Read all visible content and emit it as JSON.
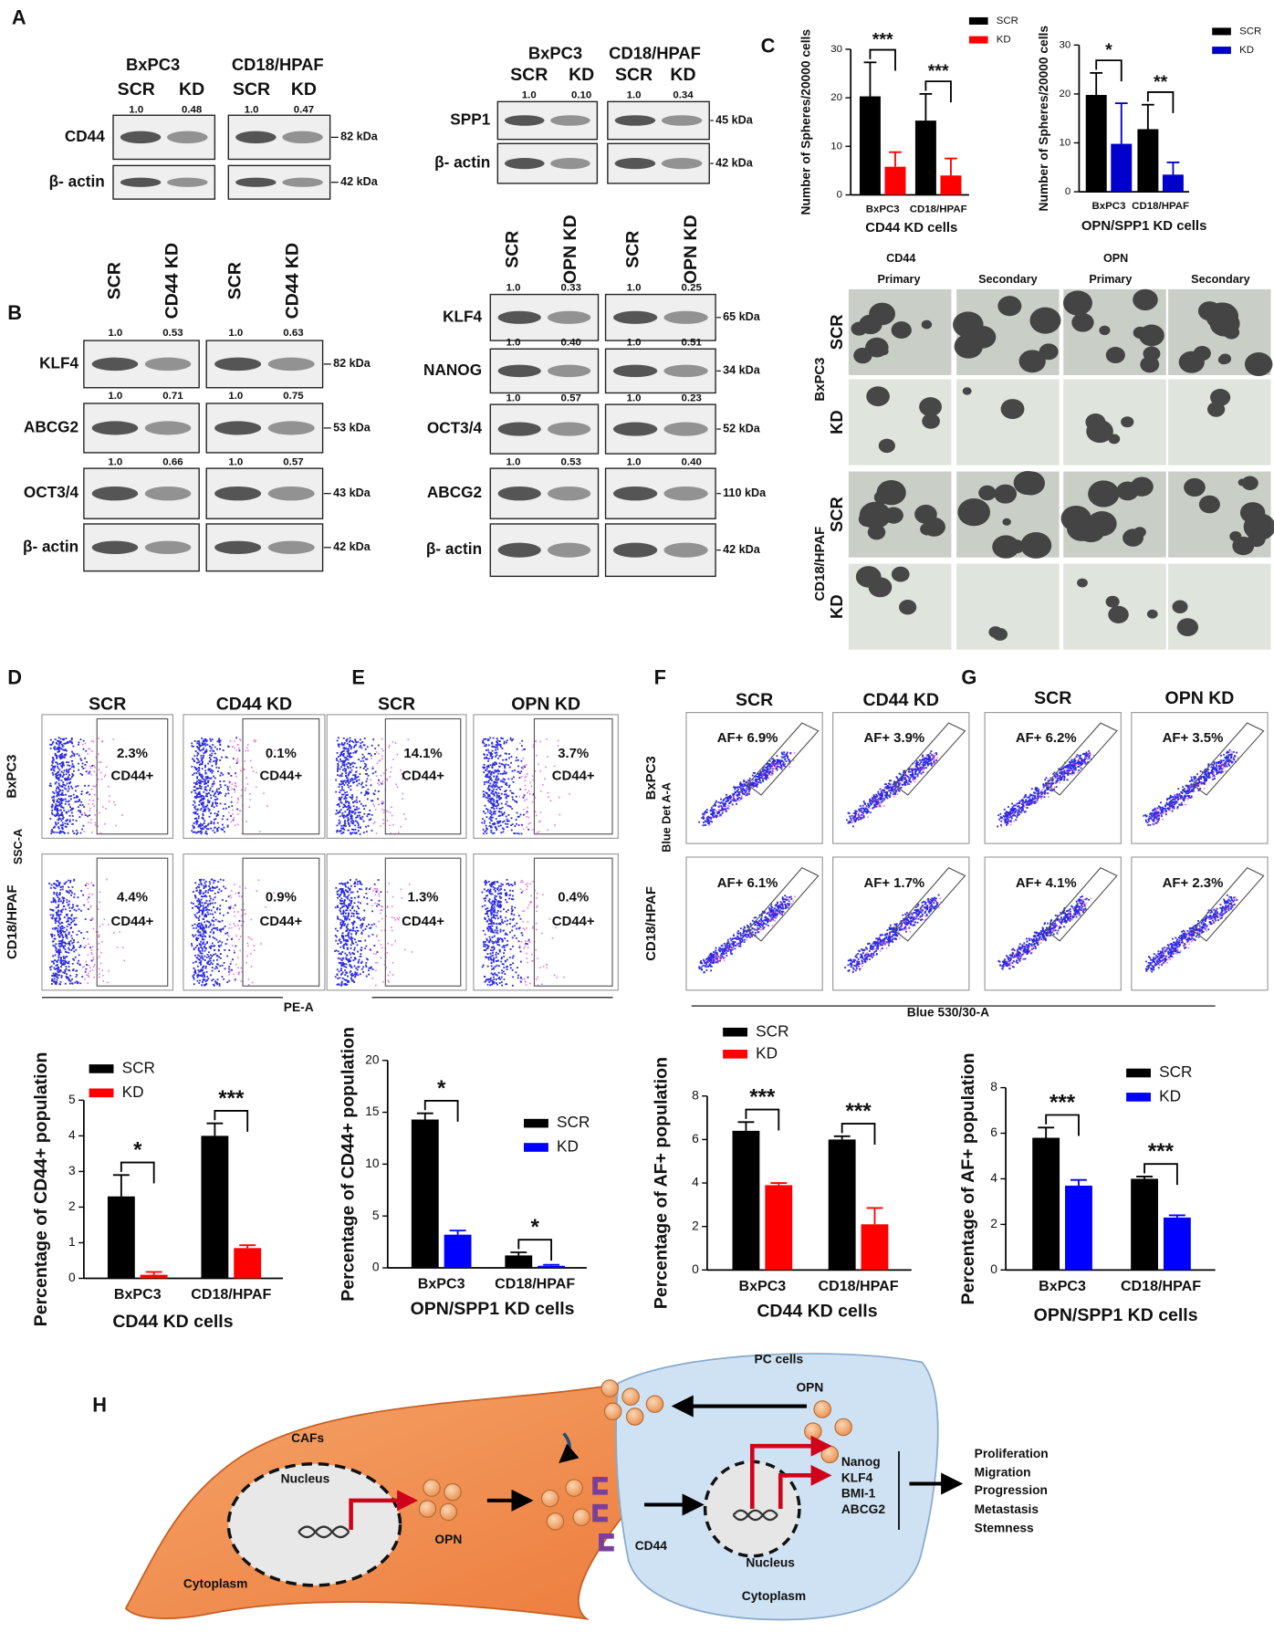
{
  "panel_labels": [
    "A",
    "B",
    "C",
    "D",
    "E",
    "F",
    "G",
    "H"
  ],
  "blots": [
    {
      "cell_lines": [
        "BxPC3",
        "CD18/HPAF"
      ],
      "lanes": [
        "SCR",
        "KD",
        "SCR",
        "KD"
      ],
      "rows": [
        {
          "protein": "CD44",
          "ratios": [
            "1.0",
            "0.48",
            "1.0",
            "0.47"
          ],
          "size": "82 kDa"
        },
        {
          "protein": "β- actin",
          "size": "42 kDa"
        }
      ]
    },
    {
      "cell_lines": [
        "BxPC3",
        "CD18/HPAF"
      ],
      "lanes": [
        "SCR",
        "KD",
        "SCR",
        "KD"
      ],
      "rows": [
        {
          "protein": "SPP1",
          "ratios": [
            "1.0",
            "0.10",
            "1.0",
            "0.34"
          ],
          "size": "45 kDa"
        },
        {
          "protein": "β- actin",
          "size": "42 kDa"
        }
      ]
    },
    {
      "lanes": [
        "SCR",
        "CD44 KD",
        "SCR",
        "CD44 KD"
      ],
      "rows": [
        {
          "protein": "KLF4",
          "ratios": [
            "1.0",
            "0.53",
            "1.0",
            "0.63"
          ],
          "size": "82 kDa"
        },
        {
          "protein": "ABCG2",
          "ratios": [
            "1.0",
            "0.71",
            "1.0",
            "0.75"
          ],
          "size": "53 kDa"
        },
        {
          "protein": "OCT3/4",
          "ratios": [
            "1.0",
            "0.66",
            "1.0",
            "0.57"
          ],
          "size": "43 kDa"
        },
        {
          "protein": "β- actin",
          "size": "42 kDa"
        }
      ]
    },
    {
      "lanes": [
        "SCR",
        "OPN KD",
        "SCR",
        "OPN KD"
      ],
      "rows": [
        {
          "protein": "KLF4",
          "ratios": [
            "1.0",
            "0.33",
            "1.0",
            "0.25"
          ],
          "size": "65 kDa"
        },
        {
          "protein": "NANOG",
          "ratios": [
            "1.0",
            "0.40",
            "1.0",
            "0.51"
          ],
          "size": "34 kDa"
        },
        {
          "protein": "OCT3/4",
          "ratios": [
            "1.0",
            "0.57",
            "1.0",
            "0.23"
          ],
          "size": "52 kDa"
        },
        {
          "protein": "ABCG2",
          "ratios": [
            "1.0",
            "0.53",
            "1.0",
            "0.40"
          ],
          "size": "110 kDa"
        },
        {
          "protein": "β- actin",
          "size": "42 kDa"
        }
      ]
    }
  ],
  "spheres": {
    "groups": [
      "CD44",
      "OPN"
    ],
    "stages": [
      "Primary",
      "Secondary",
      "Primary",
      "Secondary"
    ],
    "cell_lines": [
      "BxPC3",
      "CD18/HPAF"
    ],
    "conditions": [
      "SCR",
      "KD",
      "SCR",
      "KD"
    ]
  },
  "flow": [
    {
      "conditions": [
        "SCR",
        "CD44 KD"
      ],
      "cell_lines": [
        "BxPC3",
        "CD18/HPAF"
      ],
      "y_label": "SSC-A",
      "x_label": "PE-A",
      "gates": [
        "2.3%",
        "0.1%",
        "4.4%",
        "0.9%"
      ],
      "gate_label": "CD44+"
    },
    {
      "conditions": [
        "SCR",
        "OPN KD"
      ],
      "gates": [
        "14.1%",
        "3.7%",
        "1.3%",
        "0.4%"
      ],
      "gate_label": "CD44+"
    },
    {
      "conditions": [
        "SCR",
        "CD44 KD"
      ],
      "cell_lines": [
        "BxPC3",
        "CD18/HPAF"
      ],
      "y_label": "Blue Det A-A",
      "x_label": "Blue 530/30-A",
      "gates": [
        "AF+ 6.9%",
        "AF+ 3.9%",
        "AF+ 6.1%",
        "AF+ 1.7%"
      ]
    },
    {
      "conditions": [
        "SCR",
        "OPN KD"
      ],
      "gates": [
        "AF+ 6.2%",
        "AF+ 3.5%",
        "AF+ 4.1%",
        "AF+ 2.3%"
      ]
    }
  ],
  "chart_data": [
    {
      "type": "bar",
      "title": "CD44 KD cells",
      "y_label": "Number of Spheres/20000 cells",
      "categories": [
        "BxPC3",
        "CD18/HPAF"
      ],
      "ylim": [
        0,
        30
      ],
      "yticks": [
        0,
        10,
        20,
        30
      ],
      "series": [
        {
          "name": "SCR",
          "color": "#000000",
          "values": [
            20.3,
            15.3
          ],
          "errors": [
            7,
            5.5
          ]
        },
        {
          "name": "KD",
          "color": "#ff0000",
          "values": [
            5.8,
            4.0
          ],
          "errors": [
            3,
            3.5
          ]
        }
      ],
      "significance": [
        "***",
        "***"
      ]
    },
    {
      "type": "bar",
      "title": "OPN/SPP1 KD cells",
      "y_label": "Number of Spheres/20000 cells",
      "categories": [
        "BxPC3",
        "CD18/HPAF"
      ],
      "ylim": [
        0,
        30
      ],
      "yticks": [
        0,
        10,
        20,
        30
      ],
      "series": [
        {
          "name": "SCR",
          "color": "#000000",
          "values": [
            19.8,
            12.8
          ],
          "errors": [
            4.5,
            5
          ]
        },
        {
          "name": "KD",
          "color": "#0000cc",
          "values": [
            9.8,
            3.5
          ],
          "errors": [
            8.3,
            2.5
          ]
        }
      ],
      "significance": [
        "*",
        "**"
      ]
    },
    {
      "type": "bar",
      "title": "CD44 KD cells",
      "y_label": "Percentage of CD44+ population",
      "categories": [
        "BxPC3",
        "CD18/HPAF"
      ],
      "ylim": [
        0,
        5
      ],
      "yticks": [
        0,
        1,
        2,
        3,
        4,
        5
      ],
      "series": [
        {
          "name": "SCR",
          "color": "#000000",
          "values": [
            2.3,
            4.0
          ],
          "errors": [
            0.6,
            0.35
          ]
        },
        {
          "name": "KD",
          "color": "#ff0000",
          "values": [
            0.1,
            0.85
          ],
          "errors": [
            0.08,
            0.08
          ]
        }
      ],
      "significance": [
        "*",
        "***"
      ]
    },
    {
      "type": "bar",
      "title": "OPN/SPP1 KD cells",
      "y_label": "Percentage of CD44+ population",
      "categories": [
        "BxPC3",
        "CD18/HPAF"
      ],
      "ylim": [
        0,
        20
      ],
      "yticks": [
        0,
        5,
        10,
        15,
        20
      ],
      "series": [
        {
          "name": "SCR",
          "color": "#000000",
          "values": [
            14.3,
            1.2
          ],
          "errors": [
            0.6,
            0.3
          ]
        },
        {
          "name": "KD",
          "color": "#0000ff",
          "values": [
            3.2,
            0.2
          ],
          "errors": [
            0.4,
            0.1
          ]
        }
      ],
      "significance": [
        "*",
        "*"
      ]
    },
    {
      "type": "bar",
      "title": "CD44 KD cells",
      "y_label": "Percentage of AF+ population",
      "categories": [
        "BxPC3",
        "CD18/HPAF"
      ],
      "ylim": [
        0,
        8
      ],
      "yticks": [
        0,
        2,
        4,
        6,
        8
      ],
      "series": [
        {
          "name": "SCR",
          "color": "#000000",
          "values": [
            6.4,
            6.0
          ],
          "errors": [
            0.4,
            0.15
          ]
        },
        {
          "name": "KD",
          "color": "#ff0000",
          "values": [
            3.9,
            2.1
          ],
          "errors": [
            0.1,
            0.75
          ]
        }
      ],
      "significance": [
        "***",
        "***"
      ]
    },
    {
      "type": "bar",
      "title": "OPN/SPP1 KD cells",
      "y_label": "Percentage of AF+ population",
      "categories": [
        "BxPC3",
        "CD18/HPAF"
      ],
      "ylim": [
        0,
        8
      ],
      "yticks": [
        0,
        2,
        4,
        6,
        8
      ],
      "series": [
        {
          "name": "SCR",
          "color": "#000000",
          "values": [
            5.8,
            4.0
          ],
          "errors": [
            0.45,
            0.1
          ]
        },
        {
          "name": "KD",
          "color": "#0000ff",
          "values": [
            3.7,
            2.3
          ],
          "errors": [
            0.25,
            0.1
          ]
        }
      ],
      "significance": [
        "***",
        "***"
      ]
    }
  ],
  "diagram": {
    "caf_label": "CAFs",
    "caf_nucleus": "Nucleus",
    "secreted": "OPN",
    "caf_cytoplasm": "Cytoplasm",
    "pc_label": "PC cells",
    "pc_opn": "OPN",
    "receptor": "CD44",
    "pc_nucleus": "Nucleus",
    "pc_cytoplasm": "Cytoplasm",
    "genes": [
      "Nanog",
      "KLF4",
      "BMI-1",
      "ABCG2"
    ],
    "outcomes": [
      "Proliferation",
      "Migration",
      "Progression",
      "Metastasis",
      "Stemness"
    ]
  }
}
